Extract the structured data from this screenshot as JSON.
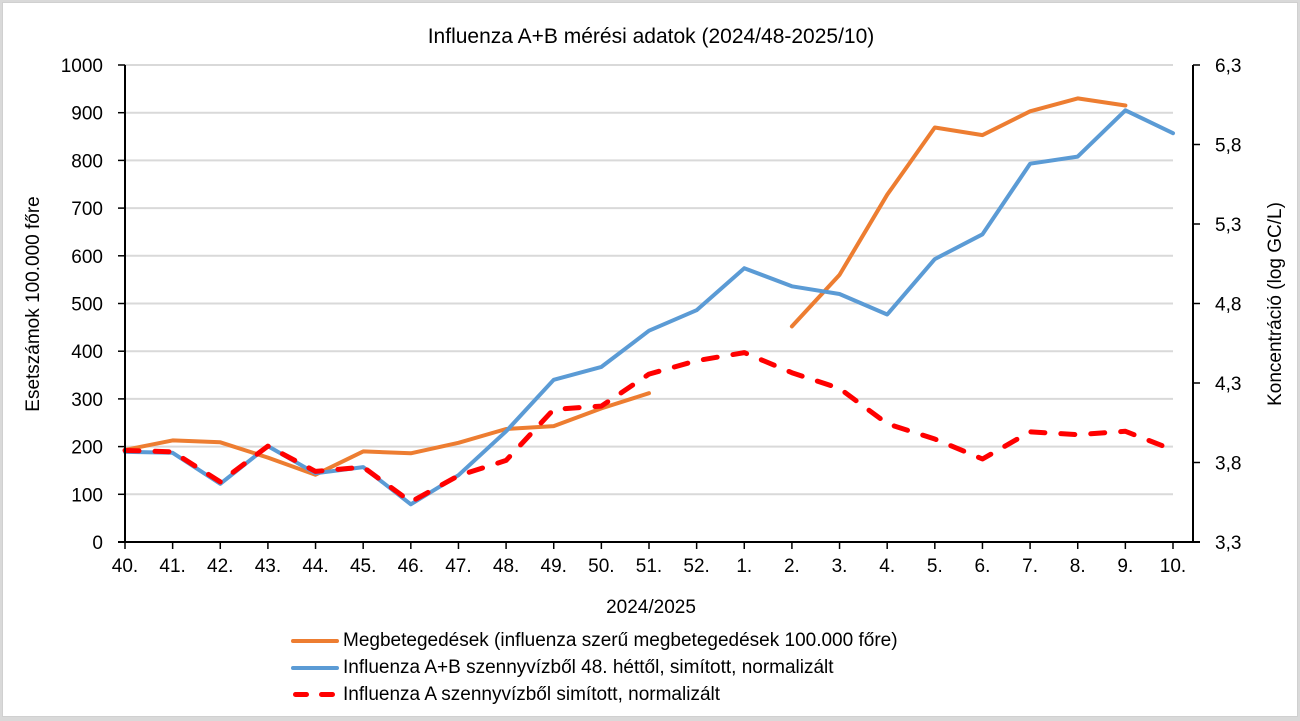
{
  "chart_data": {
    "type": "line",
    "title": "Influenza A+B mérési adatok (2024/48-2025/10)",
    "xlabel": "2024/2025",
    "ylabel": "Esetszámok 100.000 főre",
    "y2label": "Koncentráció (log GC/L)",
    "ylim": [
      0,
      1000
    ],
    "y2lim": [
      3.3,
      6.3
    ],
    "grid": true,
    "legend_position": "bottom",
    "categories": [
      "40.",
      "41.",
      "42.",
      "43.",
      "44.",
      "45.",
      "46.",
      "47.",
      "48.",
      "49.",
      "50.",
      "51.",
      "52.",
      "1.",
      "2.",
      "3.",
      "4.",
      "5.",
      "6.",
      "7.",
      "8.",
      "9.",
      "10."
    ],
    "y_ticks": [
      "0",
      "100",
      "200",
      "300",
      "400",
      "500",
      "600",
      "700",
      "800",
      "900",
      "1000"
    ],
    "y2_ticks": [
      "3,3",
      "3,8",
      "4,3",
      "4,8",
      "5,3",
      "5,8",
      "6,3"
    ],
    "series": [
      {
        "name": "Megbetegedések (influenza szerű megbetegedések 100.000 főre)",
        "color": "#ED7D31",
        "style": "solid",
        "axis": "left",
        "values": [
          193,
          213,
          209,
          177,
          141,
          190,
          186,
          208,
          237,
          243,
          280,
          312,
          null,
          null,
          452,
          560,
          728,
          869,
          853,
          903,
          930,
          915,
          null
        ]
      },
      {
        "name": "Influenza A+B szennyvízből 48. héttől, simított, normalizált",
        "color": "#5B9BD5",
        "style": "solid",
        "axis": "left",
        "values": [
          189,
          187,
          122,
          201,
          144,
          157,
          79,
          140,
          232,
          340,
          367,
          443,
          486,
          574,
          536,
          520,
          477,
          593,
          645,
          793,
          808,
          905,
          857
        ]
      },
      {
        "name": "Influenza A szennyvízből simított, normalizált",
        "color": "#FF0000",
        "style": "dashed",
        "axis": "left",
        "values": [
          192,
          189,
          126,
          201,
          148,
          157,
          84,
          139,
          171,
          278,
          285,
          352,
          380,
          397,
          355,
          322,
          248,
          216,
          174,
          231,
          225,
          232,
          193
        ]
      }
    ]
  }
}
